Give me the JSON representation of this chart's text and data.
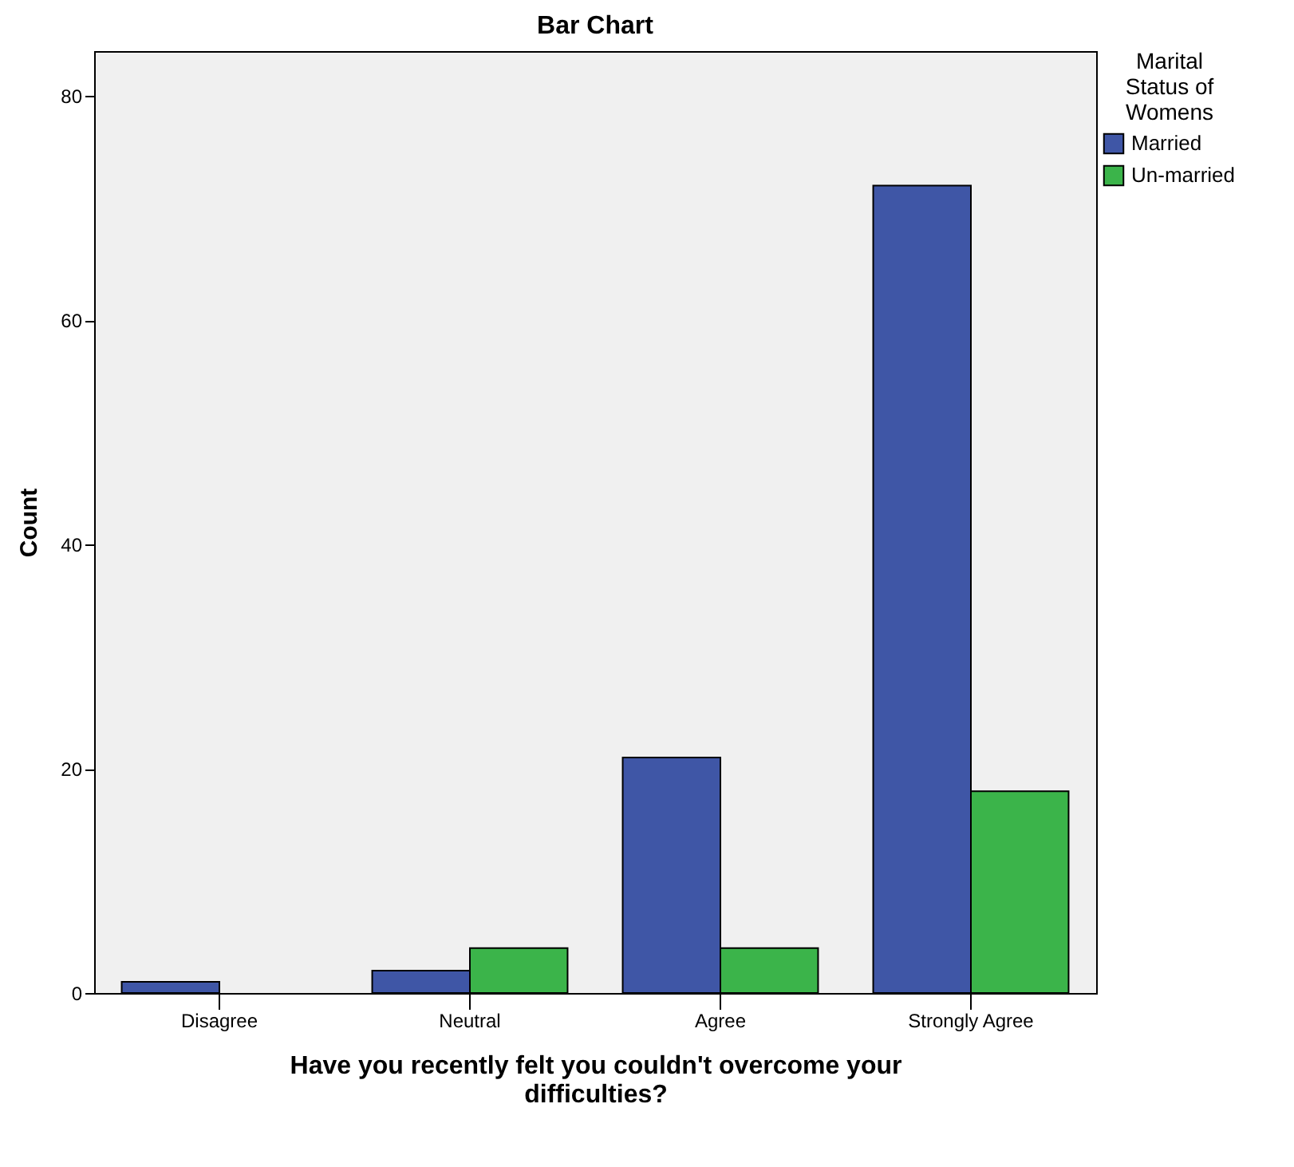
{
  "chart_data": {
    "type": "bar",
    "title": "Bar Chart",
    "xlabel": "Have you recently felt you couldn't overcome your difficulties?",
    "ylabel": "Count",
    "legend_title": "Marital Status of Womens",
    "categories": [
      "Disagree",
      "Neutral",
      "Agree",
      "Strongly Agree"
    ],
    "series": [
      {
        "name": "Married",
        "color": "#3f56a6",
        "values": [
          1,
          2,
          21,
          72
        ]
      },
      {
        "name": "Un-married",
        "color": "#3bb44a",
        "values": [
          null,
          4,
          4,
          18
        ]
      }
    ],
    "ylim": [
      0,
      84
    ],
    "yticks": [
      0,
      20,
      40,
      60,
      80
    ],
    "grid": false,
    "legend": "right"
  }
}
